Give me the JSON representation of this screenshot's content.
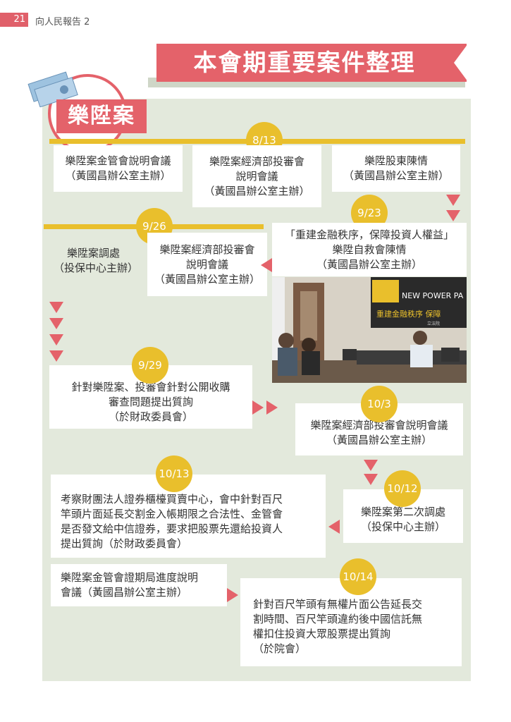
{
  "header": {
    "page_number": "21",
    "publication": "向人民報告 2"
  },
  "title": "本會期重要案件整理",
  "badge": "樂陞案",
  "photo": {
    "sign_brand": "NEW POWER PA",
    "sign_banner": "重建金融秩序 保障",
    "sign_small": "立法院"
  },
  "dates": {
    "d1": "8/13",
    "d2": "9/26",
    "d3": "9/23",
    "d4": "9/29",
    "d5": "10/3",
    "d6": "10/13",
    "d7": "10/12",
    "d8": "10/14"
  },
  "cards": {
    "c1": "樂陞案金管會說明會議\n（黃國昌辦公室主辦）",
    "c2": "樂陞案經濟部投審會\n說明會議\n（黃國昌辦公室主辦）",
    "c3": "樂陞股東陳情\n（黃國昌辦公室主辦）",
    "c4": "樂陞案調處\n（投保中心主辦）",
    "c5": "樂陞案經濟部投審會\n說明會議\n（黃國昌辦公室主辦）",
    "c6": "「重建金融秩序，保障投資人權益」\n樂陞自救會陳情\n（黃國昌辦公室主辦）",
    "c7": "針對樂陞案、投審會針對公開收購\n審查問題提出質詢\n（於財政委員會）",
    "c8": "樂陞案經濟部投審會說明會議\n（黃國昌辦公室主辦）",
    "c9": "考察財團法人證券櫃檯買賣中心，會中針對百尺\n竿頭片面延長交割金入帳期限之合法性、金管會\n是否發文給中信證券，要求把股票先還給投資人\n提出質詢（於財政委員會）",
    "c10": "樂陞案第二次調處\n（投保中心主辦）",
    "c11": "樂陞案金管會證期局進度說明\n會議（黃國昌辦公室主辦）",
    "c12": "針對百尺竿頭有無權片面公告延長交\n割時間、百尺竿頭違約後中國信託無\n權扣住投資大眾股票提出質詢\n（於院會）"
  },
  "colors": {
    "accent": "#e4626a",
    "timeline": "#e9bf2c",
    "panel": "#e3e9dc"
  }
}
